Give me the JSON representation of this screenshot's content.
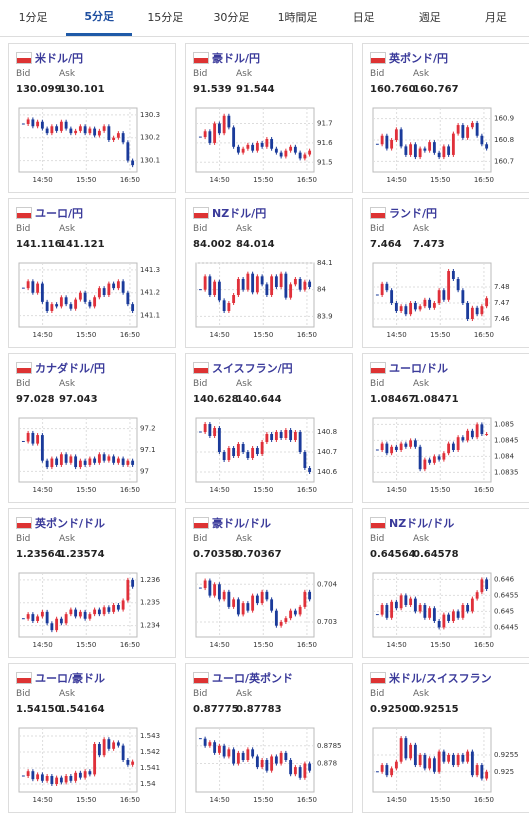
{
  "tabs": [
    "1分足",
    "5分足",
    "15分足",
    "30分足",
    "1時間足",
    "日足",
    "週足",
    "月足"
  ],
  "active_tab": 1,
  "bid_label": "Bid",
  "ask_label": "Ask",
  "panels": [
    {
      "title": "米ドル/円",
      "bid": "130.099",
      "ask": "130.101",
      "chart": {
        "type": "candlestick",
        "ylim": [
          130.05,
          130.33
        ],
        "yticks": [
          130.3,
          130.2,
          130.1
        ],
        "xticks": [
          "14:50",
          "15:50",
          "16:50"
        ],
        "values": [
          130.26,
          130.28,
          130.25,
          130.27,
          130.24,
          130.22,
          130.25,
          130.23,
          130.27,
          130.24,
          130.22,
          130.23,
          130.25,
          130.22,
          130.24,
          130.21,
          130.23,
          130.25,
          130.19,
          130.2,
          130.22,
          130.18,
          130.1,
          130.08
        ]
      }
    },
    {
      "title": "豪ドル/円",
      "bid": "91.539",
      "ask": "91.544",
      "chart": {
        "type": "candlestick",
        "ylim": [
          91.45,
          91.78
        ],
        "yticks": [
          91.7,
          91.6,
          91.5
        ],
        "xticks": [
          "14:50",
          "15:50",
          "16:50"
        ],
        "values": [
          91.63,
          91.66,
          91.6,
          91.7,
          91.65,
          91.74,
          91.68,
          91.58,
          91.55,
          91.57,
          91.59,
          91.56,
          91.6,
          91.58,
          91.62,
          91.57,
          91.55,
          91.53,
          91.56,
          91.58,
          91.55,
          91.52,
          91.54,
          91.56
        ]
      }
    },
    {
      "title": "英ポンド/円",
      "bid": "160.760",
      "ask": "160.767",
      "chart": {
        "type": "candlestick",
        "ylim": [
          160.65,
          160.95
        ],
        "yticks": [
          160.9,
          160.8,
          160.7
        ],
        "xticks": [
          "14:50",
          "15:50",
          "16:50"
        ],
        "values": [
          160.78,
          160.82,
          160.76,
          160.8,
          160.85,
          160.77,
          160.73,
          160.78,
          160.72,
          160.76,
          160.75,
          160.79,
          160.74,
          160.72,
          160.77,
          160.73,
          160.83,
          160.87,
          160.81,
          160.86,
          160.88,
          160.82,
          160.78,
          160.76
        ]
      }
    },
    {
      "title": "ユーロ/円",
      "bid": "141.116",
      "ask": "141.121",
      "chart": {
        "type": "candlestick",
        "ylim": [
          141.05,
          141.33
        ],
        "yticks": [
          141.3,
          141.2,
          141.1
        ],
        "xticks": [
          "14:50",
          "15:50",
          "16:50"
        ],
        "values": [
          141.22,
          141.25,
          141.2,
          141.24,
          141.16,
          141.12,
          141.15,
          141.14,
          141.18,
          141.15,
          141.13,
          141.17,
          141.2,
          141.16,
          141.14,
          141.18,
          141.22,
          141.19,
          141.24,
          141.22,
          141.25,
          141.2,
          141.15,
          141.12
        ]
      }
    },
    {
      "title": "NZドル/円",
      "bid": "84.002",
      "ask": "84.014",
      "chart": {
        "type": "candlestick",
        "ylim": [
          83.86,
          84.1
        ],
        "yticks": [
          84.1,
          84,
          83.9
        ],
        "xticks": [
          "14:50",
          "15:50",
          "16:50"
        ],
        "values": [
          84.0,
          84.05,
          83.98,
          84.03,
          83.96,
          83.92,
          83.95,
          83.98,
          84.04,
          84.0,
          84.06,
          83.99,
          84.05,
          84.02,
          83.98,
          84.05,
          84.01,
          84.06,
          83.97,
          84.02,
          84.04,
          84.0,
          84.03,
          84.01
        ]
      }
    },
    {
      "title": "ランド/円",
      "bid": "7.464",
      "ask": "7.473",
      "chart": {
        "type": "candlestick",
        "ylim": [
          7.455,
          7.495
        ],
        "yticks": [
          7.48,
          7.47,
          7.46
        ],
        "xticks": [
          "14:50",
          "15:50",
          "16:50"
        ],
        "values": [
          7.475,
          7.482,
          7.478,
          7.47,
          7.465,
          7.468,
          7.463,
          7.47,
          7.466,
          7.468,
          7.472,
          7.467,
          7.47,
          7.478,
          7.472,
          7.49,
          7.485,
          7.478,
          7.47,
          7.46,
          7.467,
          7.463,
          7.468,
          7.473
        ]
      }
    },
    {
      "title": "カナダドル/円",
      "bid": "97.028",
      "ask": "97.043",
      "chart": {
        "type": "candlestick",
        "ylim": [
          96.95,
          97.25
        ],
        "yticks": [
          97.2,
          97.1,
          97
        ],
        "xticks": [
          "14:50",
          "15:50",
          "16:50"
        ],
        "values": [
          97.14,
          97.18,
          97.13,
          97.17,
          97.05,
          97.02,
          97.06,
          97.03,
          97.08,
          97.04,
          97.07,
          97.02,
          97.05,
          97.03,
          97.06,
          97.04,
          97.08,
          97.05,
          97.07,
          97.04,
          97.06,
          97.03,
          97.05,
          97.03
        ]
      }
    },
    {
      "title": "スイスフラン/円",
      "bid": "140.628",
      "ask": "140.644",
      "chart": {
        "type": "candlestick",
        "ylim": [
          140.55,
          140.87
        ],
        "yticks": [
          140.8,
          140.7,
          140.6
        ],
        "xticks": [
          "14:50",
          "15:50",
          "16:50"
        ],
        "values": [
          140.8,
          140.84,
          140.78,
          140.82,
          140.7,
          140.66,
          140.72,
          140.68,
          140.74,
          140.7,
          140.67,
          140.72,
          140.69,
          140.75,
          140.79,
          140.76,
          140.8,
          140.77,
          140.81,
          140.76,
          140.8,
          140.7,
          140.62,
          140.6
        ]
      }
    },
    {
      "title": "ユーロ/ドル",
      "bid": "1.08467",
      "ask": "1.08471",
      "chart": {
        "type": "candlestick",
        "ylim": [
          1.0832,
          1.0852
        ],
        "yticks": [
          1.085,
          1.0845,
          1.084,
          1.0835
        ],
        "xticks": [
          "14:50",
          "15:50",
          "16:50"
        ],
        "values": [
          1.0842,
          1.0844,
          1.0841,
          1.0843,
          1.0842,
          1.0844,
          1.0843,
          1.0845,
          1.0843,
          1.0836,
          1.0839,
          1.0838,
          1.084,
          1.0839,
          1.0841,
          1.0844,
          1.0842,
          1.0846,
          1.0845,
          1.0848,
          1.0846,
          1.085,
          1.0847,
          1.0847
        ]
      }
    },
    {
      "title": "英ポンド/ドル",
      "bid": "1.23564",
      "ask": "1.23574",
      "chart": {
        "type": "candlestick",
        "ylim": [
          1.2335,
          1.2363
        ],
        "yticks": [
          1.236,
          1.235,
          1.234
        ],
        "xticks": [
          "14:50",
          "15:50",
          "16:50"
        ],
        "values": [
          1.2343,
          1.2345,
          1.2342,
          1.2344,
          1.2346,
          1.2341,
          1.2338,
          1.2343,
          1.2341,
          1.2345,
          1.2347,
          1.2344,
          1.2346,
          1.2343,
          1.2345,
          1.2347,
          1.2345,
          1.2348,
          1.2346,
          1.2349,
          1.2347,
          1.2351,
          1.236,
          1.2357
        ]
      }
    },
    {
      "title": "豪ドル/ドル",
      "bid": "0.70358",
      "ask": "0.70367",
      "chart": {
        "type": "candlestick",
        "ylim": [
          0.7026,
          0.7043
        ],
        "yticks": [
          0.704,
          0.703
        ],
        "xticks": [
          "14:50",
          "15:50",
          "16:50"
        ],
        "values": [
          0.7039,
          0.7041,
          0.7037,
          0.704,
          0.7036,
          0.7038,
          0.7034,
          0.7036,
          0.7032,
          0.7035,
          0.7033,
          0.7037,
          0.7035,
          0.7038,
          0.7036,
          0.7033,
          0.7029,
          0.703,
          0.7031,
          0.7033,
          0.7032,
          0.7034,
          0.7038,
          0.7036
        ]
      }
    },
    {
      "title": "NZドル/ドル",
      "bid": "0.64564",
      "ask": "0.64578",
      "chart": {
        "type": "candlestick",
        "ylim": [
          0.6442,
          0.6462
        ],
        "yticks": [
          0.646,
          0.6455,
          0.645,
          0.6445
        ],
        "xticks": [
          "14:50",
          "15:50",
          "16:50"
        ],
        "values": [
          0.6449,
          0.6452,
          0.6448,
          0.6453,
          0.6451,
          0.6455,
          0.6452,
          0.6454,
          0.645,
          0.6452,
          0.6448,
          0.6451,
          0.6447,
          0.6445,
          0.6449,
          0.6447,
          0.645,
          0.6448,
          0.6452,
          0.645,
          0.6454,
          0.6456,
          0.646,
          0.6457
        ]
      }
    },
    {
      "title": "ユーロ/豪ドル",
      "bid": "1.54150",
      "ask": "1.54164",
      "chart": {
        "type": "candlestick",
        "ylim": [
          1.5395,
          1.5435
        ],
        "yticks": [
          1.543,
          1.542,
          1.541,
          1.54
        ],
        "xticks": [
          "14:50",
          "15:50",
          "16:50"
        ],
        "values": [
          1.5405,
          1.5408,
          1.5403,
          1.5406,
          1.5402,
          1.5405,
          1.54,
          1.5404,
          1.5401,
          1.5405,
          1.5402,
          1.5407,
          1.5404,
          1.5408,
          1.5406,
          1.5425,
          1.5418,
          1.5428,
          1.5422,
          1.5426,
          1.5424,
          1.5415,
          1.5412,
          1.5414
        ]
      }
    },
    {
      "title": "ユーロ/英ポンド",
      "bid": "0.87775",
      "ask": "0.87783",
      "chart": {
        "type": "candlestick",
        "ylim": [
          0.8772,
          0.879
        ],
        "yticks": [
          0.8785,
          0.878
        ],
        "xticks": [
          "14:50",
          "15:50",
          "16:50"
        ],
        "values": [
          0.8787,
          0.8785,
          0.8786,
          0.8783,
          0.8785,
          0.8782,
          0.8784,
          0.878,
          0.8783,
          0.8781,
          0.8784,
          0.8782,
          0.8779,
          0.8781,
          0.8778,
          0.8782,
          0.878,
          0.8783,
          0.8781,
          0.8777,
          0.8779,
          0.8776,
          0.878,
          0.8778
        ]
      }
    },
    {
      "title": "米ドル/スイスフラン",
      "bid": "0.92500",
      "ask": "0.92515",
      "chart": {
        "type": "candlestick",
        "ylim": [
          0.9244,
          0.9263
        ],
        "yticks": [
          0.9255,
          0.925
        ],
        "xticks": [
          "14:50",
          "15:50",
          "16:50"
        ],
        "values": [
          0.925,
          0.9252,
          0.9249,
          0.9251,
          0.9253,
          0.926,
          0.9254,
          0.9258,
          0.9252,
          0.9255,
          0.9251,
          0.9254,
          0.925,
          0.9256,
          0.9253,
          0.9255,
          0.9252,
          0.9255,
          0.9253,
          0.9256,
          0.9249,
          0.9252,
          0.9248,
          0.925
        ]
      }
    }
  ]
}
